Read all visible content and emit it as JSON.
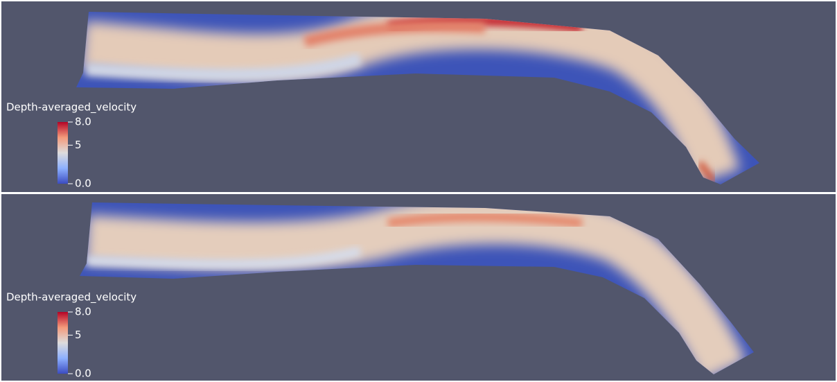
{
  "panels": [
    {
      "colorbar": {
        "title": "Depth-averaged_velocity",
        "range": [
          0,
          8
        ],
        "ticks": [
          {
            "value": 8,
            "label": "8.0"
          },
          {
            "value": 5,
            "label": "5"
          },
          {
            "value": 0,
            "label": "0.0"
          }
        ]
      }
    },
    {
      "colorbar": {
        "title": "Depth-averaged_velocity",
        "range": [
          0,
          8
        ],
        "ticks": [
          {
            "value": 8,
            "label": "8.0"
          },
          {
            "value": 5,
            "label": "5"
          },
          {
            "value": 0,
            "label": "0.0"
          }
        ]
      }
    }
  ]
}
